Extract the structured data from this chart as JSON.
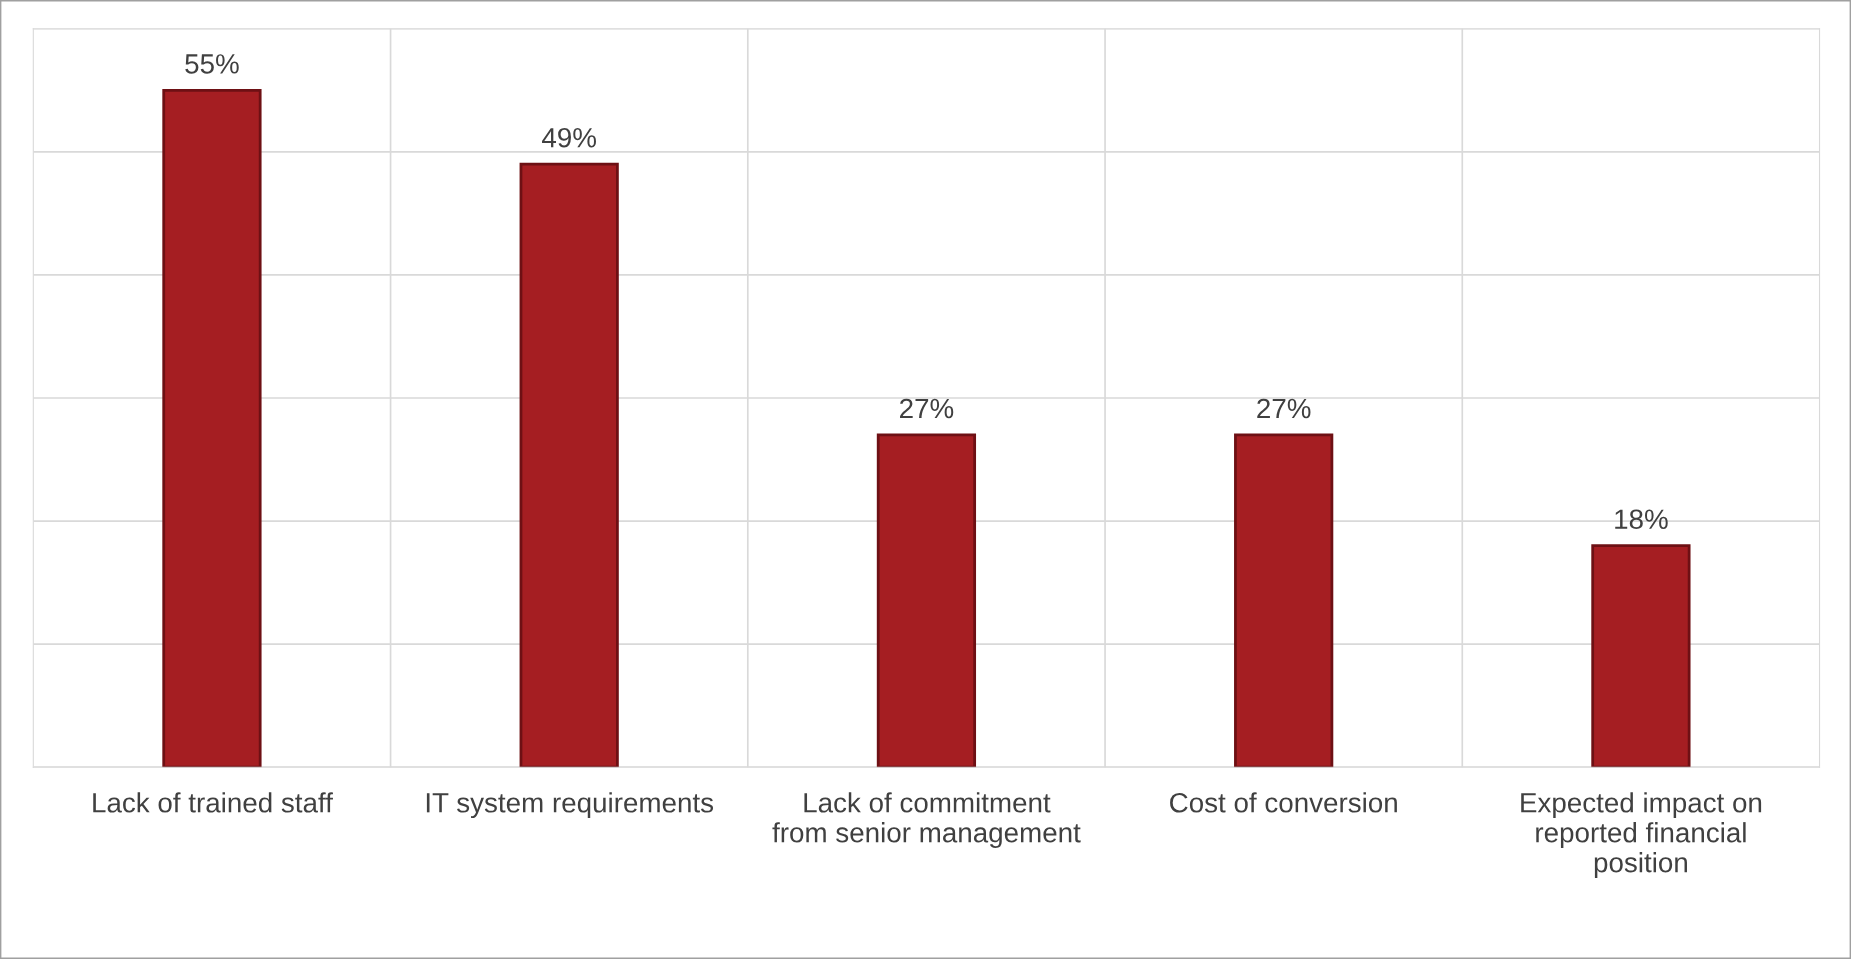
{
  "chart_data": {
    "type": "bar",
    "categories": [
      "Lack of trained staff",
      "IT system requirements",
      "Lack of commitment\nfrom senior management",
      "Cost of conversion",
      "Expected impact on\nreported financial\nposition"
    ],
    "values": [
      55,
      49,
      27,
      27,
      18
    ],
    "color": "#a51e22",
    "ylim": [
      0,
      60
    ],
    "yticks": [
      {
        "value": 0,
        "label": null
      },
      {
        "value": 10,
        "label": null
      },
      {
        "value": 20,
        "label": null
      },
      {
        "value": 30,
        "label": null
      },
      {
        "value": 40,
        "label": null
      },
      {
        "value": 50,
        "label": null
      },
      {
        "value": 60,
        "label": null
      }
    ],
    "value_labels": [
      "55%",
      "49%",
      "27%",
      "27%",
      "18%"
    ],
    "grid": true,
    "legend": false
  }
}
